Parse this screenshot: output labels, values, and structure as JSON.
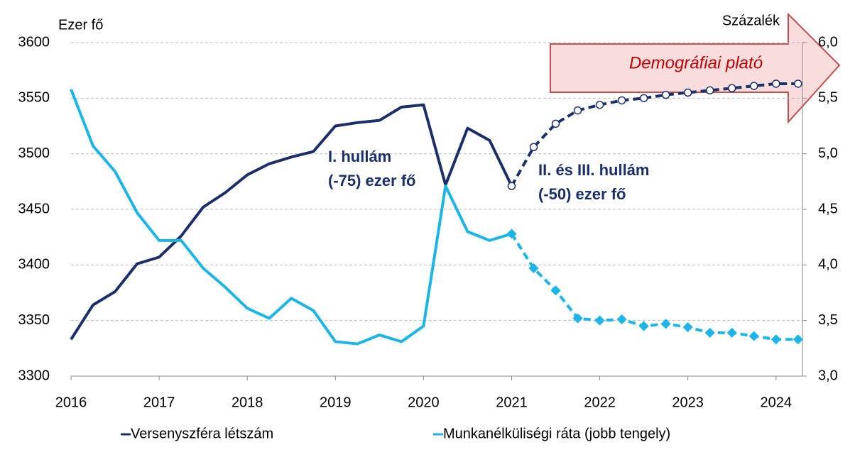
{
  "chart_data": {
    "type": "line",
    "x": [
      2016,
      2016.25,
      2016.5,
      2016.75,
      2017,
      2017.25,
      2017.5,
      2017.75,
      2018,
      2018.25,
      2018.5,
      2018.75,
      2019,
      2019.25,
      2019.5,
      2019.75,
      2020,
      2020.25,
      2020.5,
      2020.75,
      2021,
      2021.25,
      2021.5,
      2021.75,
      2022,
      2022.25,
      2022.5,
      2022.75,
      2023,
      2023.25,
      2023.5,
      2023.75,
      2024,
      2024.25
    ],
    "forecast_start": 20,
    "series": [
      {
        "name": "Versenyszféra létszám",
        "color": "#1b2f6b",
        "values": [
          3333,
          3364,
          3376,
          3401,
          3407,
          3426,
          3452,
          3465,
          3481,
          3491,
          3497,
          3502,
          3525,
          3528,
          3530,
          3542,
          3544,
          3472,
          3523,
          3512,
          3471,
          3506,
          3527,
          3539,
          3544,
          3548,
          3550,
          3553,
          3555,
          3557,
          3559,
          3561,
          3563,
          3563
        ]
      },
      {
        "name": "Munkanélküliségi ráta (jobb tengely)",
        "color": "#1cb5e8",
        "axis": "y2",
        "values": [
          5.58,
          5.07,
          4.84,
          4.47,
          4.22,
          4.22,
          3.97,
          3.8,
          3.61,
          3.52,
          3.7,
          3.59,
          3.31,
          3.29,
          3.37,
          3.31,
          3.45,
          4.71,
          4.3,
          4.22,
          4.28,
          3.97,
          3.77,
          3.52,
          3.5,
          3.51,
          3.45,
          3.47,
          3.44,
          3.39,
          3.39,
          3.36,
          3.33,
          3.33
        ]
      }
    ],
    "xlim": [
      2016,
      2024.3
    ],
    "xticks": [
      2016,
      2017,
      2018,
      2019,
      2020,
      2021,
      2022,
      2023,
      2024
    ],
    "ylim": [
      3300,
      3600
    ],
    "yticks": [
      3300,
      3350,
      3400,
      3450,
      3500,
      3550,
      3600
    ],
    "y2lim": [
      3,
      6
    ],
    "y2ticks": [
      {
        "value": 3,
        "label": "3,0"
      },
      {
        "value": 3.5,
        "label": "3,5"
      },
      {
        "value": 4,
        "label": "4,0"
      },
      {
        "value": 4.5,
        "label": "4,5"
      },
      {
        "value": 5,
        "label": "5,0"
      },
      {
        "value": 5.5,
        "label": "5,5"
      },
      {
        "value": 6,
        "label": "6,0"
      }
    ],
    "ylabel": "Ezer fő",
    "y2label": "Százalék",
    "annotations": [
      [
        "I. hullám",
        "(-75) ezer fő"
      ],
      [
        "II. és III. hullám",
        "(-50) ezer fő"
      ]
    ],
    "arrow_text": "Demográfiai plató",
    "grid": true,
    "legend": "bottom"
  }
}
